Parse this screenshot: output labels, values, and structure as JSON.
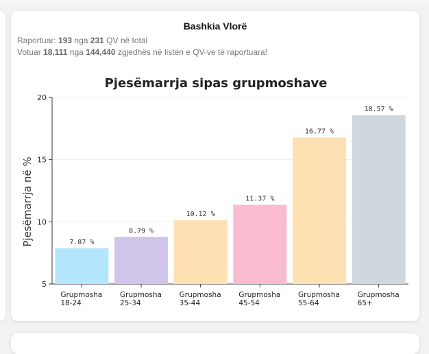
{
  "region": {
    "title": "Bashkia Vlorë",
    "reported_label": "Raportuar:",
    "reported_count": "193",
    "reported_of": "nga",
    "reported_total": "231",
    "reported_suffix": "QV në total",
    "voted_label": "Votuar",
    "voted_count": "18,111",
    "voted_of": "nga",
    "voted_total": "144,440",
    "voted_suffix": "zgjedhës në listën e QV-ve të raportuara!"
  },
  "colors": {
    "bars": [
      "#b3e5fc",
      "#d1c4e9",
      "#ffe0b2",
      "#f8bbd0",
      "#ffe0b2",
      "#cfd8dc"
    ],
    "axis": "#333333",
    "grid": "#eeeeee"
  },
  "chart_data": {
    "type": "bar",
    "title": "Pjesëmarrja sipas grupmoshave",
    "xlabel": "",
    "ylabel": "Pjesëmarrja në %",
    "categories": [
      [
        "Grupmosha",
        "18-24"
      ],
      [
        "Grupmosha",
        "25-34"
      ],
      [
        "Grupmosha",
        "35-44"
      ],
      [
        "Grupmosha",
        "45-54"
      ],
      [
        "Grupmosha",
        "55-64"
      ],
      [
        "Grupmosha",
        "65+"
      ]
    ],
    "values": [
      7.87,
      8.79,
      10.12,
      11.37,
      16.77,
      18.57
    ],
    "data_labels": [
      "7.87 %",
      "8.79 %",
      "10.12 %",
      "11.37 %",
      "16.77 %",
      "18.57 %"
    ],
    "ylim": [
      5,
      20
    ],
    "yticks": [
      "5",
      "10",
      "15",
      "20"
    ],
    "grid": true,
    "legend": "none"
  }
}
